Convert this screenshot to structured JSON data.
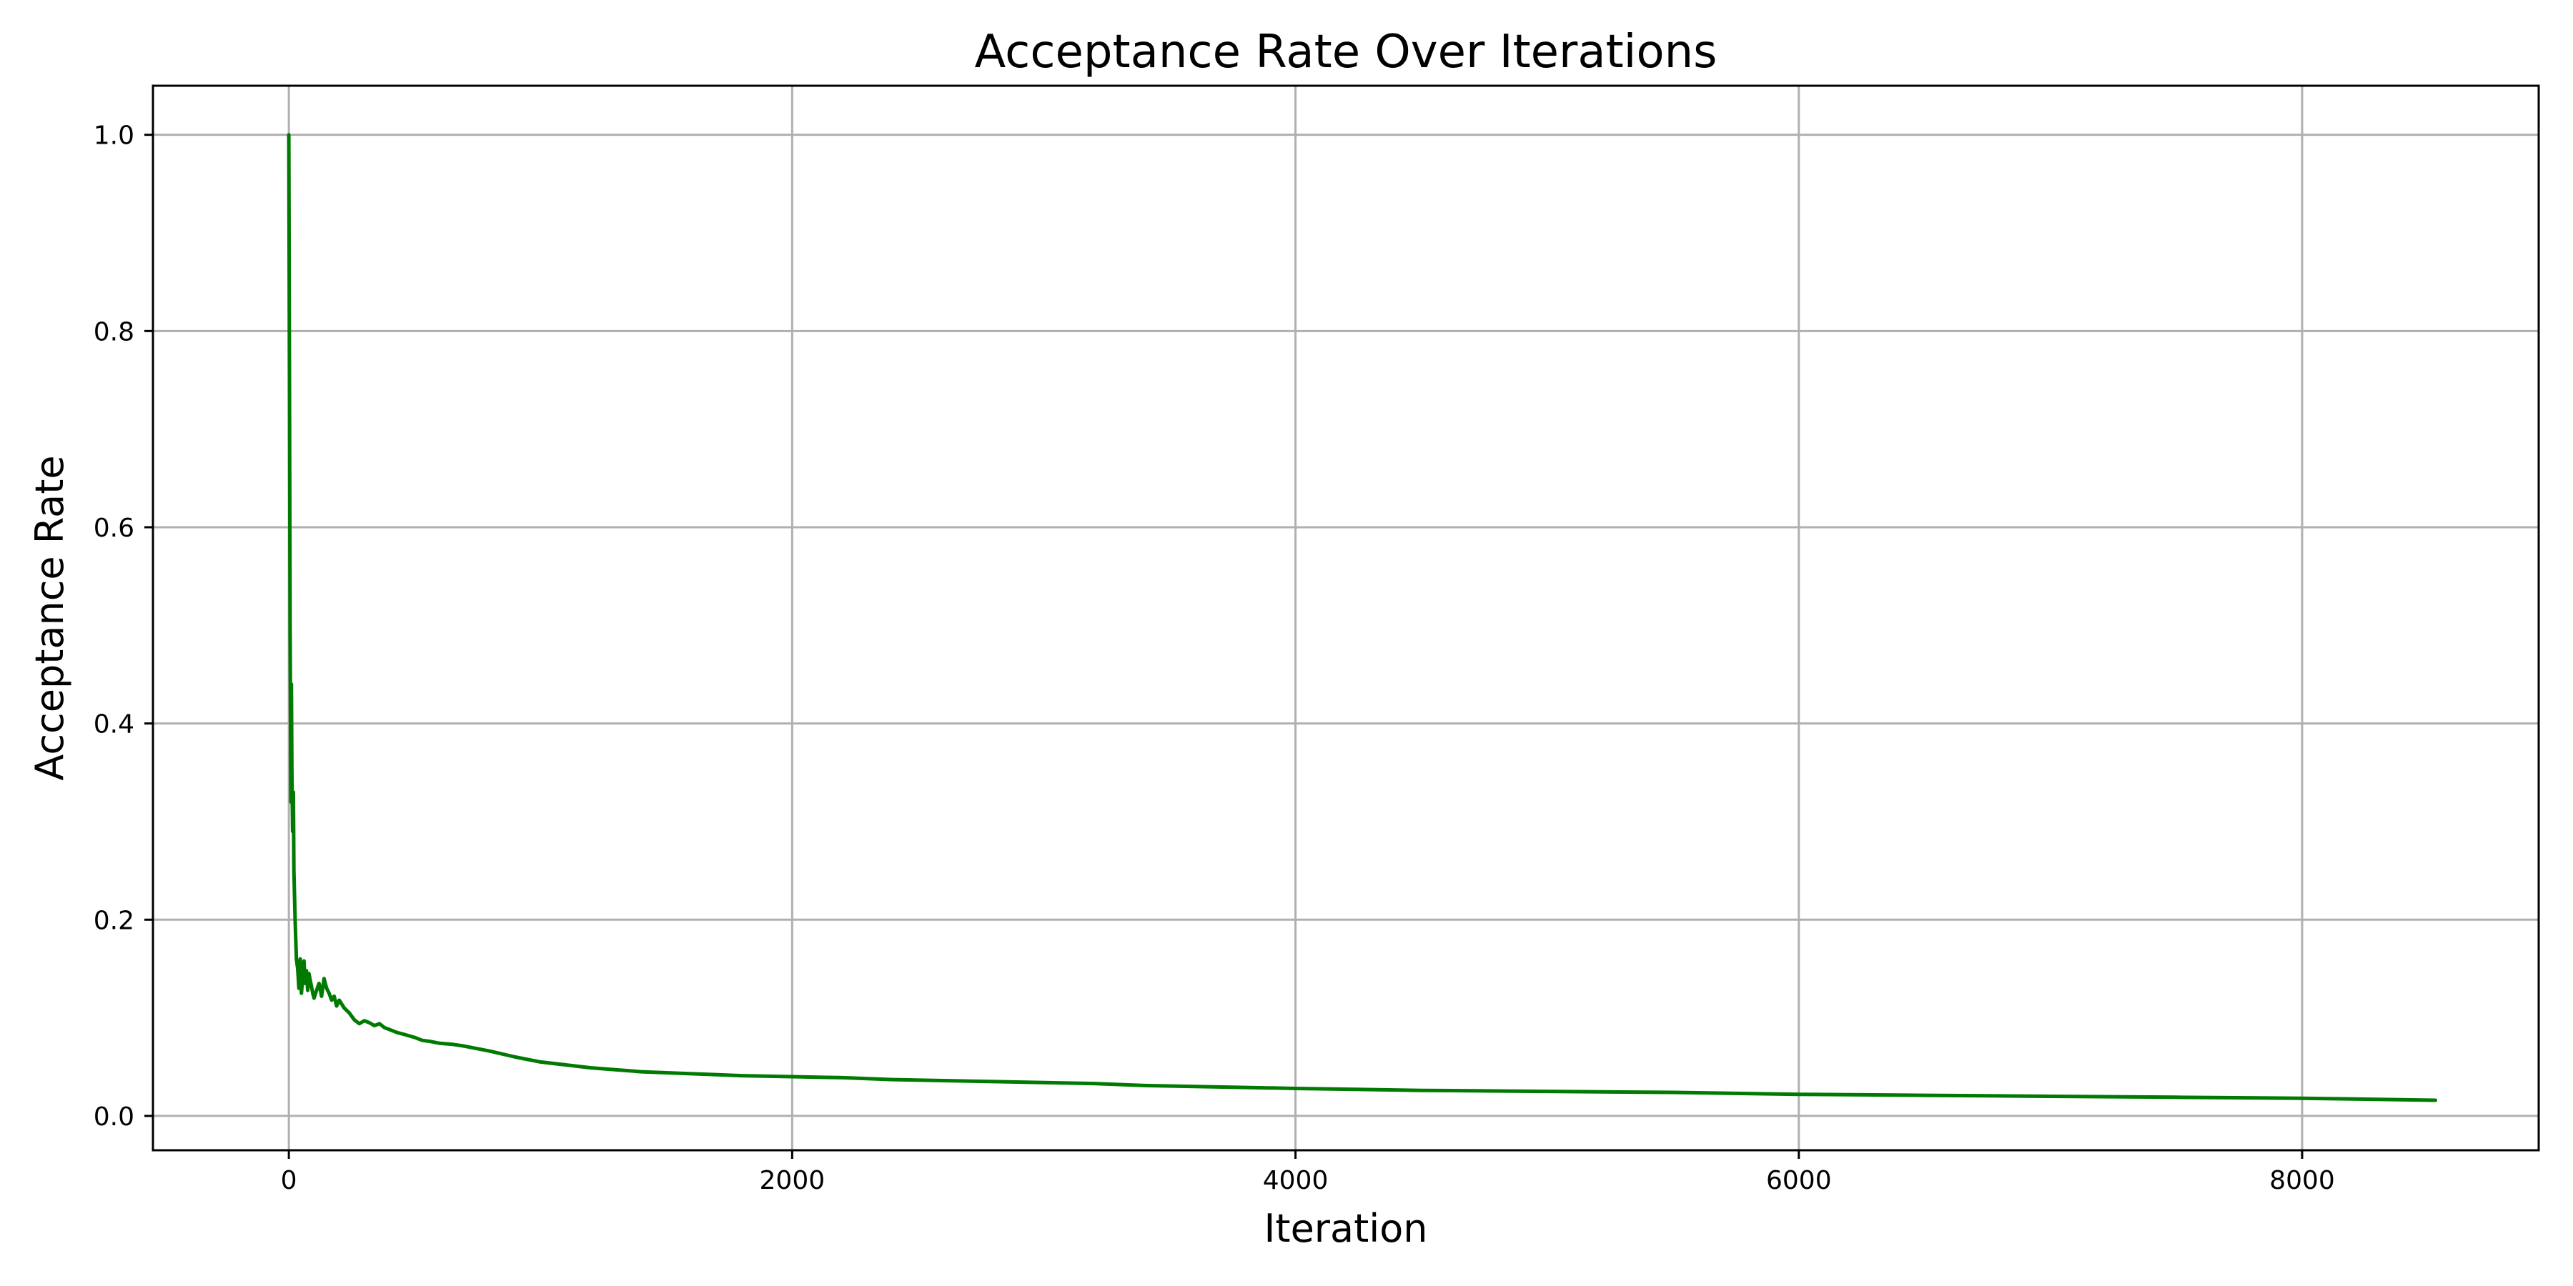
{
  "chart_data": {
    "type": "line",
    "title": "Acceptance Rate Over Iterations",
    "xlabel": "Iteration",
    "ylabel": "Acceptance Rate",
    "xlim": [
      -540,
      8940
    ],
    "ylim": [
      -0.035,
      1.05
    ],
    "xticks": [
      0,
      2000,
      4000,
      6000,
      8000
    ],
    "xtick_labels": [
      "0",
      "2000",
      "4000",
      "6000",
      "8000"
    ],
    "yticks": [
      0.0,
      0.2,
      0.4,
      0.6,
      0.8,
      1.0
    ],
    "ytick_labels": [
      "0.0",
      "0.2",
      "0.4",
      "0.6",
      "0.8",
      "1.0"
    ],
    "grid": true,
    "series": [
      {
        "color": "#007a00",
        "x": [
          0,
          5,
          8,
          10,
          12,
          15,
          18,
          20,
          25,
          30,
          35,
          40,
          45,
          50,
          55,
          60,
          65,
          70,
          75,
          80,
          85,
          90,
          95,
          100,
          110,
          120,
          130,
          140,
          150,
          160,
          170,
          180,
          190,
          200,
          220,
          240,
          260,
          280,
          300,
          320,
          340,
          360,
          380,
          400,
          430,
          460,
          500,
          530,
          560,
          600,
          650,
          700,
          800,
          900,
          1000,
          1200,
          1400,
          1600,
          1800,
          2000,
          2200,
          2400,
          2600,
          2800,
          3000,
          3200,
          3400,
          3600,
          3800,
          4000,
          4500,
          5000,
          5500,
          6000,
          6500,
          7000,
          7500,
          8000,
          8530
        ],
        "y": [
          1.0,
          0.5,
          0.32,
          0.44,
          0.35,
          0.29,
          0.33,
          0.25,
          0.2,
          0.16,
          0.15,
          0.13,
          0.16,
          0.125,
          0.14,
          0.158,
          0.135,
          0.148,
          0.128,
          0.145,
          0.138,
          0.132,
          0.125,
          0.12,
          0.128,
          0.135,
          0.122,
          0.14,
          0.13,
          0.125,
          0.118,
          0.122,
          0.112,
          0.118,
          0.11,
          0.105,
          0.098,
          0.094,
          0.097,
          0.095,
          0.092,
          0.094,
          0.09,
          0.088,
          0.085,
          0.083,
          0.08,
          0.077,
          0.076,
          0.074,
          0.073,
          0.071,
          0.066,
          0.06,
          0.055,
          0.049,
          0.045,
          0.043,
          0.041,
          0.04,
          0.039,
          0.037,
          0.036,
          0.035,
          0.034,
          0.033,
          0.031,
          0.03,
          0.029,
          0.028,
          0.026,
          0.025,
          0.024,
          0.022,
          0.021,
          0.02,
          0.019,
          0.018,
          0.016
        ]
      }
    ]
  }
}
